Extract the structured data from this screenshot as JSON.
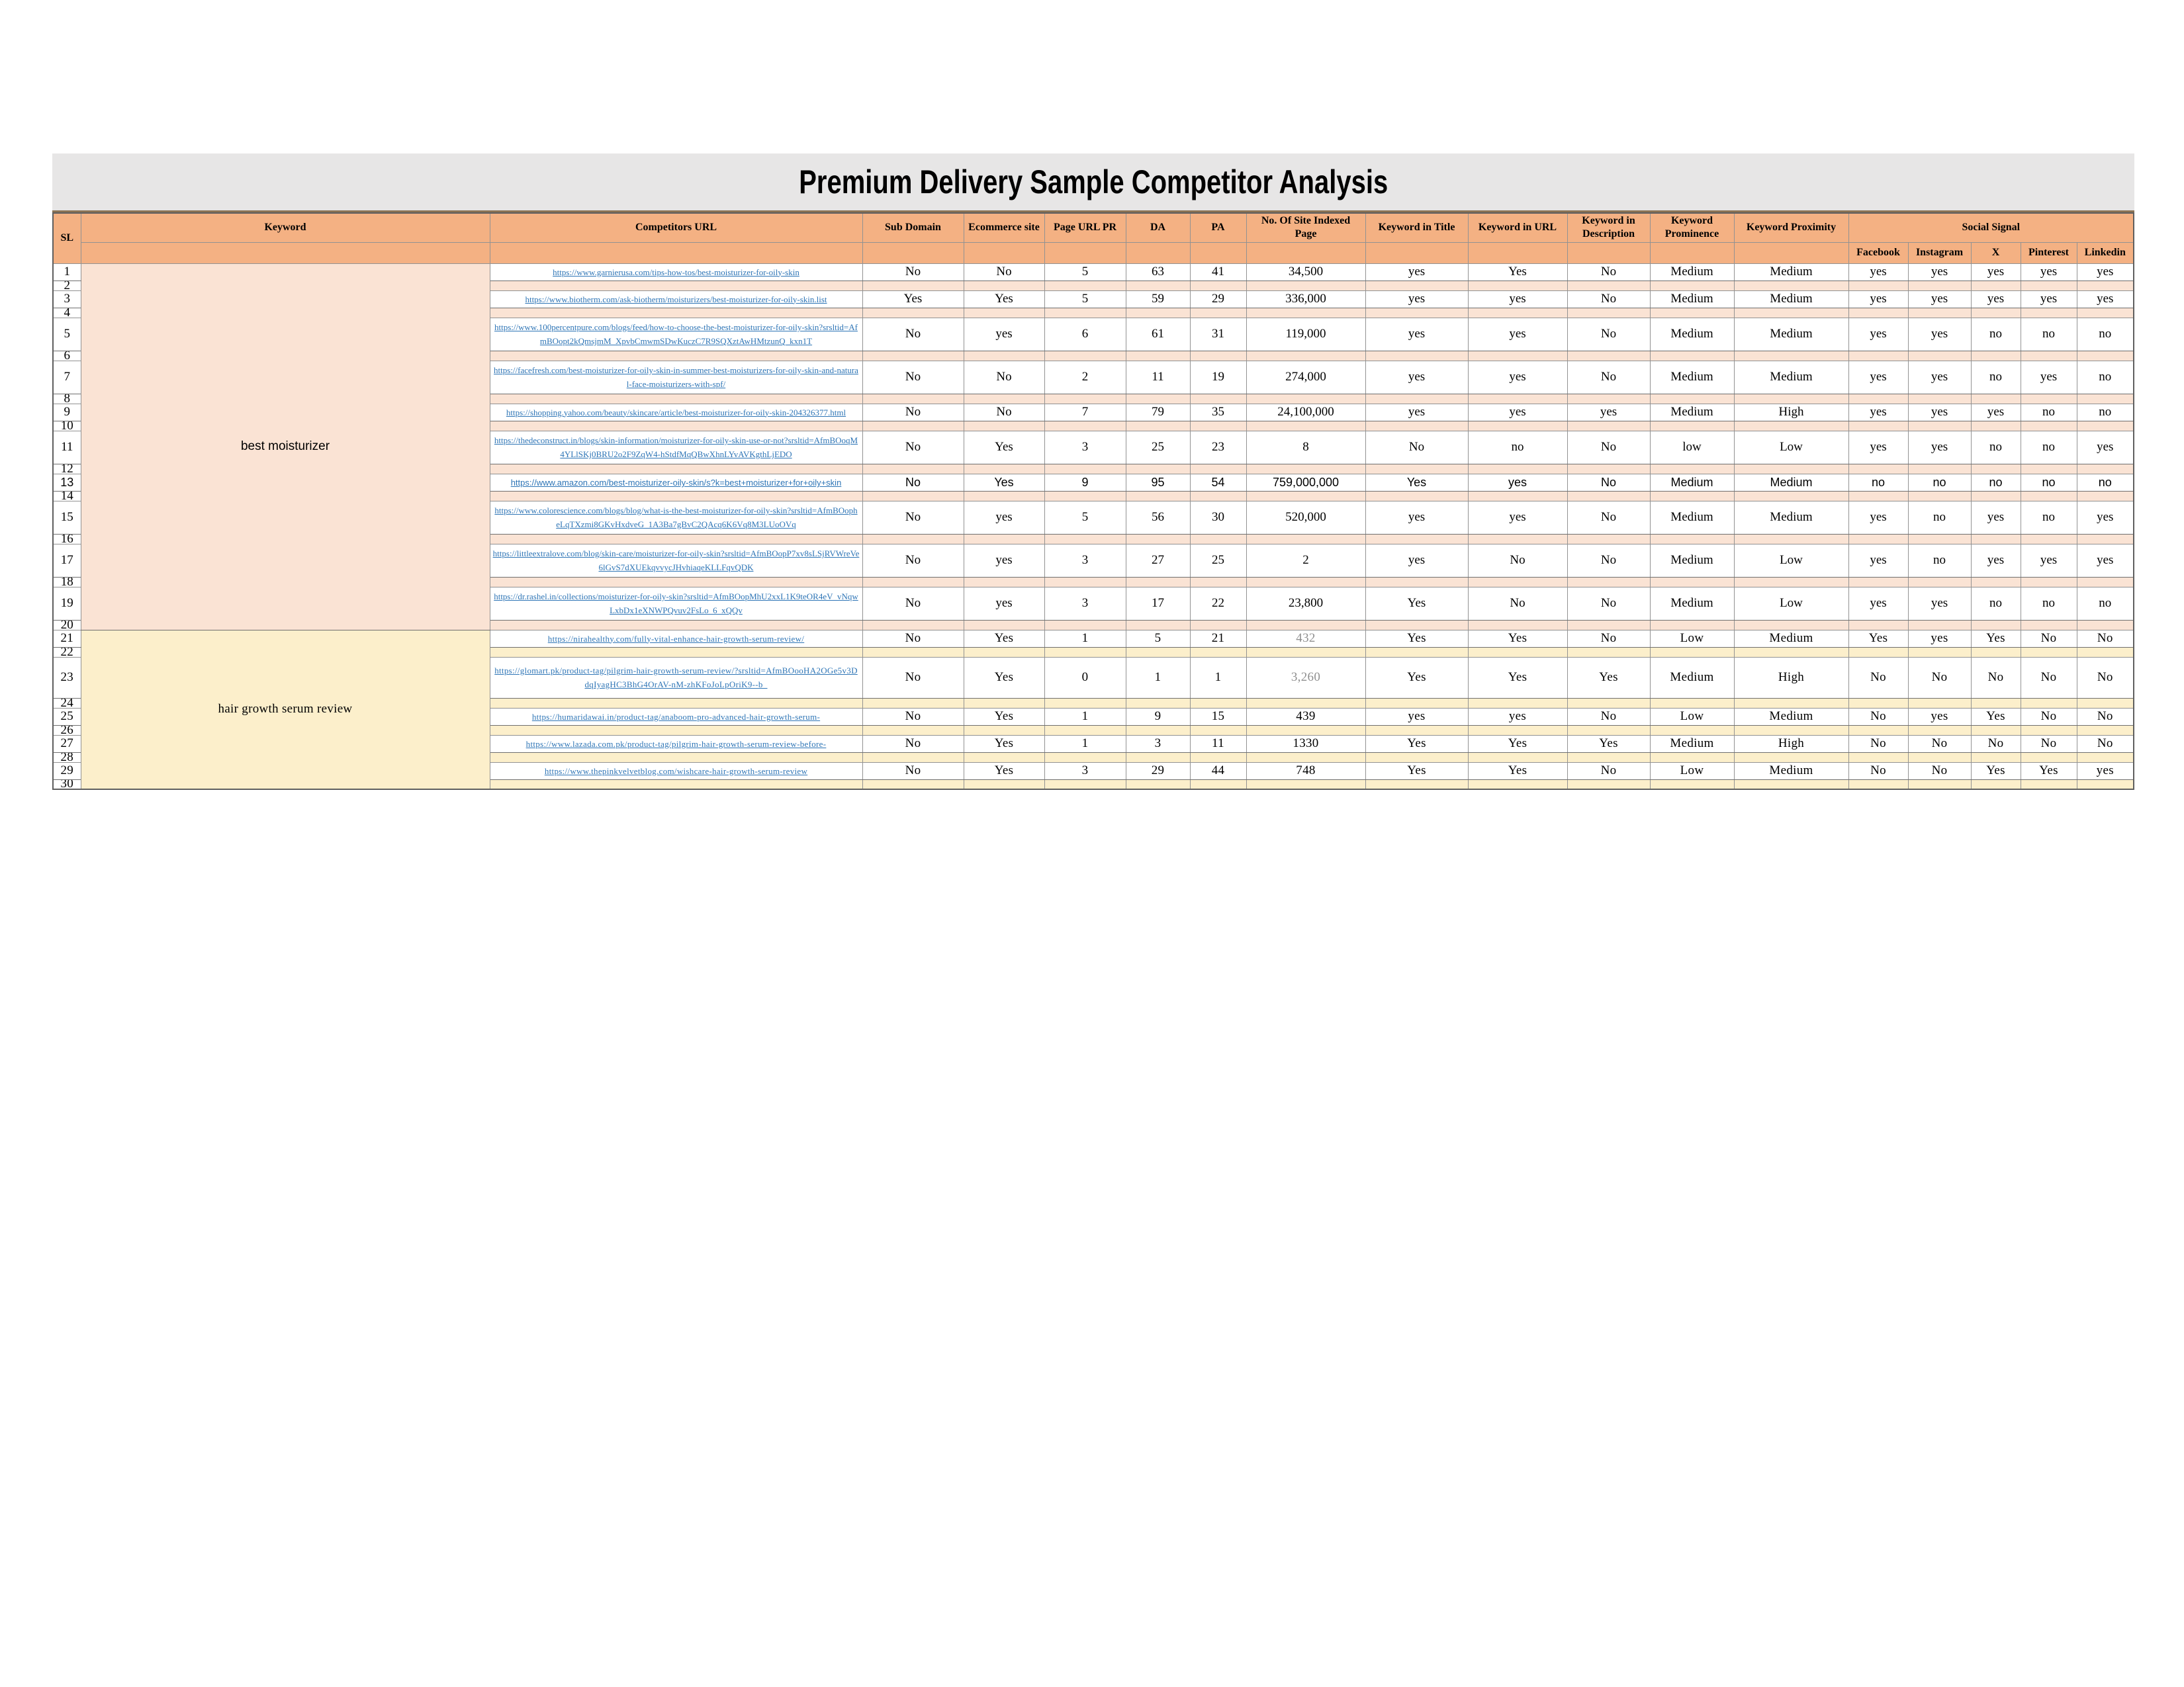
{
  "title": "Premium Delivery Sample Competitor Analysis",
  "colors": {
    "title_band": "#E7E6E6",
    "header_fill": "#F4B183",
    "section1_tint": "#FAE3D4",
    "section2_tint": "#FCEFCB",
    "link_blue": "#2E75B6",
    "muted_text": "#8f8f8f"
  },
  "header": {
    "sl": "SL",
    "keyword": "Keyword",
    "url": "Competitors URL",
    "cols": [
      "Sub Domain",
      "Ecommerce site",
      "Page URL PR",
      "DA",
      "PA",
      "No. Of Site Indexed Page",
      "Keyword in Title",
      "Keyword in URL",
      "Keyword in Description",
      "Keyword Prominence",
      "Keyword Proximity"
    ],
    "social": "Social Signal",
    "social_cols": [
      "Facebook",
      "Instagram",
      "X",
      "Pinterest",
      "Linkedin"
    ]
  },
  "sections": [
    {
      "keyword": "best moisturizer",
      "tint": "#FAE3D4",
      "rows": [
        {
          "sl": "1",
          "url": "https://www.garnierusa.com/tips-how-tos/best-moisturizer-for-oily-skin",
          "values": [
            "No",
            "No",
            "5",
            "63",
            "41",
            "34,500",
            "yes",
            "Yes",
            "No",
            "Medium",
            "Medium"
          ],
          "social": [
            "yes",
            "yes",
            "yes",
            "yes",
            "yes"
          ]
        },
        {
          "sl": "2",
          "spacer": true
        },
        {
          "sl": "3",
          "url": "https://www.biotherm.com/ask-biotherm/moisturizers/best-moisturizer-for-oily-skin.list",
          "values": [
            "Yes",
            "Yes",
            "5",
            "59",
            "29",
            "336,000",
            "yes",
            "yes",
            "No",
            "Medium",
            "Medium"
          ],
          "social": [
            "yes",
            "yes",
            "yes",
            "yes",
            "yes"
          ]
        },
        {
          "sl": "4",
          "spacer": true
        },
        {
          "sl": "5",
          "url": "https://www.100percentpure.com/blogs/feed/how-to-choose-the-best-moisturizer-for-oily-skin?srsltid=AfmBOopt2kQmsjmM_XpvbCmwmSDwKuczC7R9SQXztAwHMtzunQ_kxn1T",
          "values": [
            "No",
            "yes",
            "6",
            "61",
            "31",
            "119,000",
            "yes",
            "yes",
            "No",
            "Medium",
            "Medium"
          ],
          "social": [
            "yes",
            "yes",
            "no",
            "no",
            "no"
          ]
        },
        {
          "sl": "6",
          "spacer": true
        },
        {
          "sl": "7",
          "url": "https://facefresh.com/best-moisturizer-for-oily-skin-in-summer-best-moisturizers-for-oily-skin-and-natural-face-moisturizers-with-spf/",
          "values": [
            "No",
            "No",
            "2",
            "11",
            "19",
            "274,000",
            "yes",
            "yes",
            "No",
            "Medium",
            "Medium"
          ],
          "social": [
            "yes",
            "yes",
            "no",
            "yes",
            "no"
          ]
        },
        {
          "sl": "8",
          "spacer": true
        },
        {
          "sl": "9",
          "url": "https://shopping.yahoo.com/beauty/skincare/article/best-moisturizer-for-oily-skin-204326377.html",
          "values": [
            "No",
            "No",
            "7",
            "79",
            "35",
            "24,100,000",
            "yes",
            "yes",
            "yes",
            "Medium",
            "High"
          ],
          "social": [
            "yes",
            "yes",
            "yes",
            "no",
            "no"
          ]
        },
        {
          "sl": "10",
          "spacer": true
        },
        {
          "sl": "11",
          "url": "https://thedeconstruct.in/blogs/skin-information/moisturizer-for-oily-skin-use-or-not?srsltid=AfmBOoqM4YLlSKj0BRU2o2F9ZqW4-hStdfMqQBwXhnLYvAVKgthLjEDO",
          "values": [
            "No",
            "Yes",
            "3",
            "25",
            "23",
            "8",
            "No",
            "no",
            "No",
            "low",
            "Low"
          ],
          "social": [
            "yes",
            "yes",
            "no",
            "no",
            "yes"
          ]
        },
        {
          "sl": "12",
          "spacer": true
        },
        {
          "sl": "13",
          "url": "https://www.amazon.com/best-moisturizer-oily-skin/s?k=best+moisturizer+for+oily+skin",
          "values": [
            "No",
            "Yes",
            "9",
            "95",
            "54",
            "759,000,000",
            "Yes",
            "yes",
            "No",
            "Medium",
            "Medium"
          ],
          "social": [
            "no",
            "no",
            "no",
            "no",
            "no"
          ]
        },
        {
          "sl": "14",
          "spacer": true
        },
        {
          "sl": "15",
          "url": "https://www.colorescience.com/blogs/blog/what-is-the-best-moisturizer-for-oily-skin?srsltid=AfmBOopheLqTXzmi8GKvHxdveG_1A3Ba7gBvC2QAcq6K6Vq8M3LUoOVq",
          "values": [
            "No",
            "yes",
            "5",
            "56",
            "30",
            "520,000",
            "yes",
            "yes",
            "No",
            "Medium",
            "Medium"
          ],
          "social": [
            "yes",
            "no",
            "yes",
            "no",
            "yes"
          ]
        },
        {
          "sl": "16",
          "spacer": true
        },
        {
          "sl": "17",
          "url": "https://littleextralove.com/blog/skin-care/moisturizer-for-oily-skin?srsltid=AfmBOopP7xv8sLSjRVWreVe6lGvS7dXUEkqvvycJHvhiaqeKLLFqvQDK",
          "values": [
            "No",
            "yes",
            "3",
            "27",
            "25",
            "2",
            "yes",
            "No",
            "No",
            "Medium",
            "Low"
          ],
          "social": [
            "yes",
            "no",
            "yes",
            "yes",
            "yes"
          ]
        },
        {
          "sl": "18",
          "spacer": true
        },
        {
          "sl": "19",
          "url": "https://dr.rashel.in/collections/moisturizer-for-oily-skin?srsltid=AfmBOopMhU2xxL1K9teOR4eV_vNqwLxbDx1eXNWPQvuv2FsLo_6_xQQv",
          "values": [
            "No",
            "yes",
            "3",
            "17",
            "22",
            "23,800",
            "Yes",
            "No",
            "No",
            "Medium",
            "Low"
          ],
          "social": [
            "yes",
            "yes",
            "no",
            "no",
            "no"
          ]
        },
        {
          "sl": "20",
          "spacer": true
        }
      ]
    },
    {
      "keyword": "hair growth serum review",
      "tint": "#FCEFCB",
      "rows": [
        {
          "sl": "21",
          "url": "https://nirahealthy.com/fully-vital-enhance-hair-growth-serum-review/",
          "values": [
            "No",
            "Yes",
            "1",
            "5",
            "21",
            "432",
            "Yes",
            "Yes",
            "No",
            "Low",
            "Medium"
          ],
          "social": [
            "Yes",
            "yes",
            "Yes",
            "No",
            "No"
          ],
          "indexed_muted": true
        },
        {
          "sl": "22",
          "spacer": true
        },
        {
          "sl": "23",
          "url": "https://glomart.pk/product-tag/pilgrim-hair-growth-serum-review/?srsltid=AfmBOooHA2OGe5v3DdqIyagHC3BhG4OrAV-nM-zhKFoJoLpOriK9--b_",
          "values": [
            "No",
            "Yes",
            "0",
            "1",
            "1",
            "3,260",
            "Yes",
            "Yes",
            "Yes",
            "Medium",
            "High"
          ],
          "social": [
            "No",
            "No",
            "No",
            "No",
            "No"
          ],
          "indexed_muted": true
        },
        {
          "sl": "24",
          "spacer": true
        },
        {
          "sl": "25",
          "url": "https://humaridawai.in/product-tag/anaboom-pro-advanced-hair-growth-serum-",
          "values": [
            "No",
            "Yes",
            "1",
            "9",
            "15",
            "439",
            "yes",
            "yes",
            "No",
            "Low",
            "Medium"
          ],
          "social": [
            "No",
            "yes",
            "Yes",
            "No",
            "No"
          ]
        },
        {
          "sl": "26",
          "spacer": true
        },
        {
          "sl": "27",
          "url": "https://www.lazada.com.pk/product-tag/pilgrim-hair-growth-serum-review-before-",
          "values": [
            "No",
            "Yes",
            "1",
            "3",
            "11",
            "1330",
            "Yes",
            "Yes",
            "Yes",
            "Medium",
            "High"
          ],
          "social": [
            "No",
            "No",
            "No",
            "No",
            "No"
          ]
        },
        {
          "sl": "28",
          "spacer": true
        },
        {
          "sl": "29",
          "url": "https://www.thepinkvelvetblog.com/wishcare-hair-growth-serum-review",
          "values": [
            "No",
            "Yes",
            "3",
            "29",
            "44",
            "748",
            "Yes",
            "Yes",
            "No",
            "Low",
            "Medium"
          ],
          "social": [
            "No",
            "No",
            "Yes",
            "Yes",
            "yes"
          ]
        },
        {
          "sl": "30",
          "spacer": true
        }
      ]
    }
  ]
}
